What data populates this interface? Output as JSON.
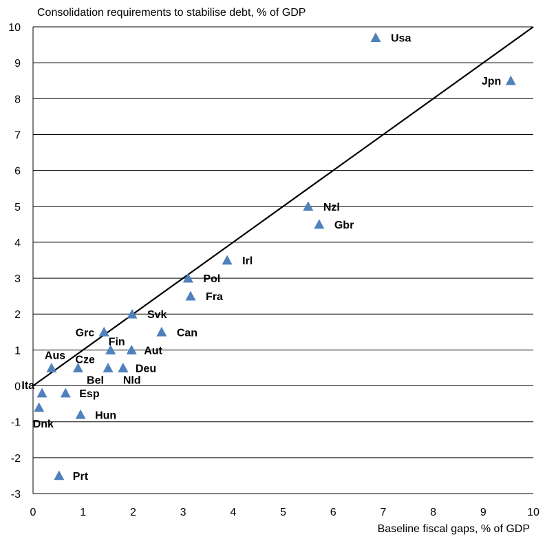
{
  "chart_data": {
    "type": "scatter",
    "title": "",
    "ylabel": "Consolidation requirements to stabilise debt,  % of GDP",
    "xlabel": "Baseline fiscal gaps, % of GDP",
    "xlim": [
      0,
      10
    ],
    "ylim": [
      -3,
      10
    ],
    "xticks": [
      "0",
      "1",
      "2",
      "3",
      "4",
      "5",
      "6",
      "7",
      "8",
      "9",
      "10"
    ],
    "yticks": [
      "10",
      "9",
      "8",
      "7",
      "6",
      "5",
      "4",
      "3",
      "2",
      "1",
      "0",
      "-1",
      "-2",
      "-3"
    ],
    "grid": "horizontal",
    "marker": "triangle",
    "marker_color": "#4F81BD",
    "reference_line": {
      "label": "",
      "x": [
        0,
        10
      ],
      "y": [
        0,
        10
      ],
      "color": "#000000"
    },
    "points": [
      {
        "label": "Usa",
        "x": 6.85,
        "y": 9.7
      },
      {
        "label": "Jpn",
        "x": 9.55,
        "y": 8.5
      },
      {
        "label": "Nzl",
        "x": 5.5,
        "y": 5.0
      },
      {
        "label": "Gbr",
        "x": 5.72,
        "y": 4.5
      },
      {
        "label": "Irl",
        "x": 3.88,
        "y": 3.5
      },
      {
        "label": "Pol",
        "x": 3.1,
        "y": 3.0
      },
      {
        "label": "Fra",
        "x": 3.15,
        "y": 2.5
      },
      {
        "label": "Svk",
        "x": 1.98,
        "y": 2.0
      },
      {
        "label": "Grc",
        "x": 1.42,
        "y": 1.5
      },
      {
        "label": "Can",
        "x": 2.57,
        "y": 1.5
      },
      {
        "label": "Fin",
        "x": 1.55,
        "y": 1.0
      },
      {
        "label": "Aut",
        "x": 1.97,
        "y": 1.0
      },
      {
        "label": "Aus",
        "x": 0.37,
        "y": 0.5
      },
      {
        "label": "Cze",
        "x": 0.9,
        "y": 0.5
      },
      {
        "label": "Bel",
        "x": 1.5,
        "y": 0.5
      },
      {
        "label": "Nld",
        "x": 1.8,
        "y": 0.5
      },
      {
        "label": "Deu",
        "x": 1.8,
        "y": 0.5
      },
      {
        "label": "Ita",
        "x": 0.18,
        "y": -0.2
      },
      {
        "label": "Esp",
        "x": 0.65,
        "y": -0.2
      },
      {
        "label": "Dnk",
        "x": 0.12,
        "y": -0.6
      },
      {
        "label": "Hun",
        "x": 0.95,
        "y": -0.8
      },
      {
        "label": "Prt",
        "x": 0.52,
        "y": -2.5
      }
    ]
  }
}
